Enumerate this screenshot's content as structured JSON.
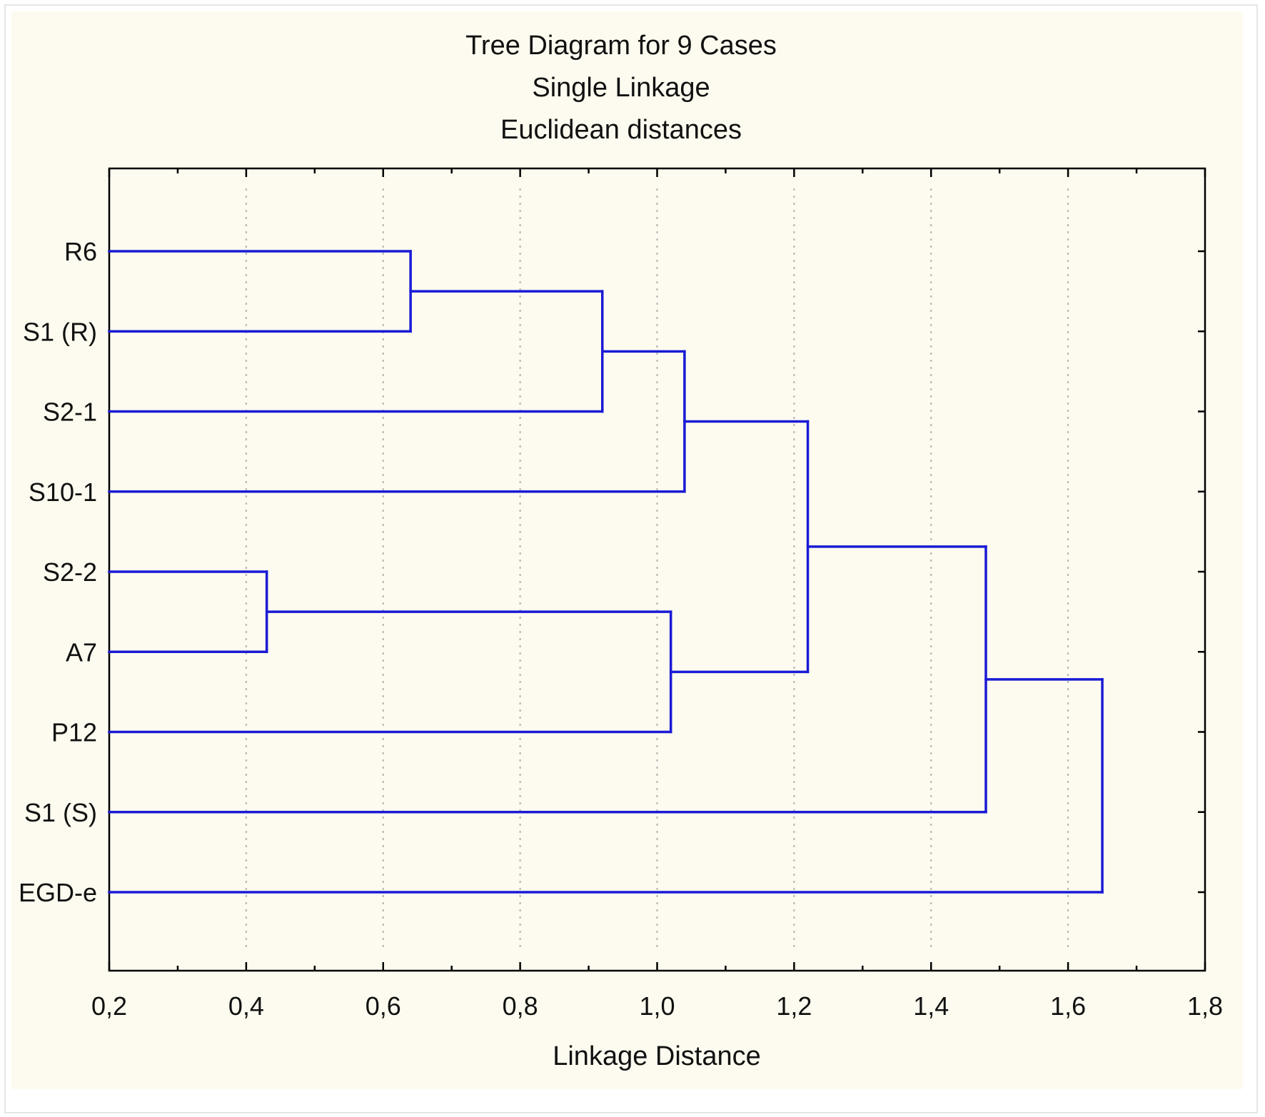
{
  "chart_data": {
    "type": "dendrogram",
    "orientation": "horizontal",
    "title": [
      "Tree Diagram for 9 Cases",
      "Single Linkage",
      "Euclidean distances"
    ],
    "xlabel": "Linkage Distance",
    "ylabel": "",
    "xlim": [
      0.2,
      1.8
    ],
    "x_ticks": [
      "0,2",
      "0,4",
      "0,6",
      "0,8",
      "1,0",
      "1,2",
      "1,4",
      "1,6",
      "1,8"
    ],
    "x_tick_values": [
      0.2,
      0.4,
      0.6,
      0.8,
      1.0,
      1.2,
      1.4,
      1.6,
      1.8
    ],
    "grid": "vertical dotted",
    "line_color": "#1a1ad6",
    "cases": [
      "R6",
      "S1 (R)",
      "S2-1",
      "S10-1",
      "S2-2",
      "A7",
      "P12",
      "S1 (S)",
      "EGD-e"
    ],
    "merges": [
      {
        "id": "m1",
        "children": [
          "R6",
          "S1 (R)"
        ],
        "distance": 0.64
      },
      {
        "id": "m2",
        "children": [
          "S2-2",
          "A7"
        ],
        "distance": 0.43
      },
      {
        "id": "m3",
        "children": [
          "m1",
          "S2-1"
        ],
        "distance": 0.92
      },
      {
        "id": "m4",
        "children": [
          "m2",
          "P12"
        ],
        "distance": 1.02
      },
      {
        "id": "m5",
        "children": [
          "m3",
          "S10-1"
        ],
        "distance": 1.04
      },
      {
        "id": "m6",
        "children": [
          "m5",
          "m4"
        ],
        "distance": 1.22
      },
      {
        "id": "m7",
        "children": [
          "m6",
          "S1 (S)"
        ],
        "distance": 1.48
      },
      {
        "id": "m8",
        "children": [
          "m7",
          "EGD-e"
        ],
        "distance": 1.65
      }
    ]
  }
}
